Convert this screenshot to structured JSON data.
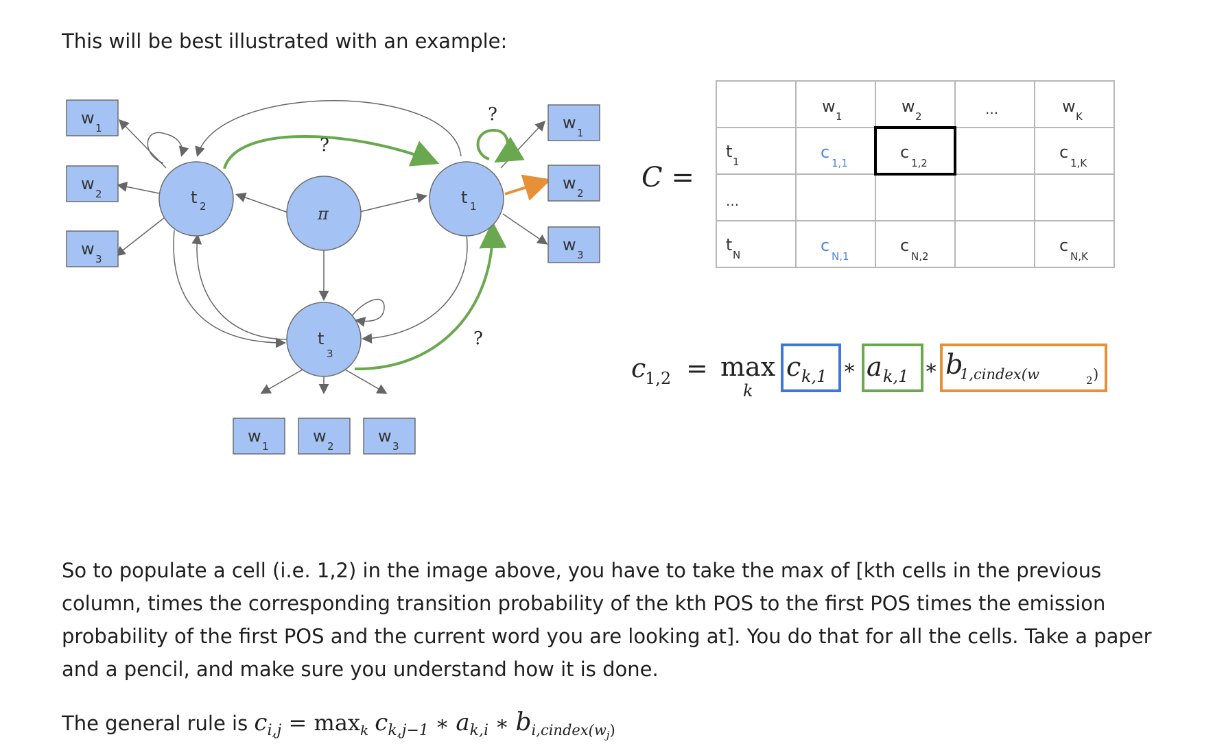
{
  "intro": "This will be best illustrated with an example:",
  "graph": {
    "states": [
      {
        "letter": "t",
        "sub": "2"
      },
      {
        "letter": "π",
        "sub": ""
      },
      {
        "letter": "t",
        "sub": "1"
      },
      {
        "letter": "t",
        "sub": "3"
      }
    ],
    "words": [
      {
        "letter": "w",
        "sub": "1"
      },
      {
        "letter": "w",
        "sub": "2"
      },
      {
        "letter": "w",
        "sub": "3"
      }
    ],
    "question_marks": [
      "?",
      "?",
      "?"
    ],
    "colors": {
      "node_fill": "#a4c2f4",
      "node_stroke": "#6d6d6d",
      "green": "#6aa84f",
      "orange": "#e69138"
    }
  },
  "matrix": {
    "lhs": "C =",
    "col_headers": [
      {
        "letter": "w",
        "sub": "1"
      },
      {
        "letter": "w",
        "sub": "2"
      },
      {
        "letter": "...",
        "sub": ""
      },
      {
        "letter": "w",
        "sub": "K"
      }
    ],
    "row_headers": [
      {
        "letter": "t",
        "sub": "1"
      },
      {
        "letter": "...",
        "sub": ""
      },
      {
        "letter": "t",
        "sub": "N"
      }
    ],
    "cells": [
      [
        {
          "letter": "c",
          "sub": "1,1"
        },
        {
          "letter": "c",
          "sub": "1,2"
        },
        {
          "letter": "",
          "sub": ""
        },
        {
          "letter": "c",
          "sub": "1,K"
        }
      ],
      [
        {
          "letter": "",
          "sub": ""
        },
        {
          "letter": "",
          "sub": ""
        },
        {
          "letter": "",
          "sub": ""
        },
        {
          "letter": "",
          "sub": ""
        }
      ],
      [
        {
          "letter": "c",
          "sub": "N,1"
        },
        {
          "letter": "c",
          "sub": "N,2"
        },
        {
          "letter": "",
          "sub": ""
        },
        {
          "letter": "c",
          "sub": "N,K"
        }
      ]
    ],
    "colors": {
      "highlight_text": "#4a86e8",
      "highlight_box": "#000000",
      "grid": "#b7b7b7"
    }
  },
  "formula": {
    "lhs_base": "c",
    "lhs_sub": "1,2",
    "equals": "=",
    "max": "max",
    "max_sub": "k",
    "term1_base": "c",
    "term1_sub": "k,1",
    "term2_base": "a",
    "term2_sub": "k,1",
    "term3_base": "b",
    "term3_sub": "1,cindex(w",
    "term3_subsub": "2",
    "term3_close": ")",
    "times": "∗",
    "colors": {
      "term1": "#3c78d8",
      "term2": "#6aa84f",
      "term3": "#e69138"
    }
  },
  "explanation": "So to populate a cell (i.e. 1,2) in the image above, you have to take the max of [kth cells in the previous column, times the corresponding transition probability of the kth POS to the first POS times the emission probability of the first POS and the current word you are looking at]. You do that for all the cells. Take a paper and a pencil, and make sure you understand how it is done.",
  "rule": {
    "prefix": "The general rule is ",
    "lhs_base": "c",
    "lhs_sub": "i,j",
    "equals": " = ",
    "max": "max",
    "max_sub": "k",
    "t1_base": "c",
    "t1_sub": "k,j−1",
    "times": " ∗ ",
    "t2_base": "a",
    "t2_sub": "k,i",
    "t3_base": "b",
    "t3_sub": "i,cindex(w",
    "t3_subsub": "j",
    "t3_close": ")"
  }
}
